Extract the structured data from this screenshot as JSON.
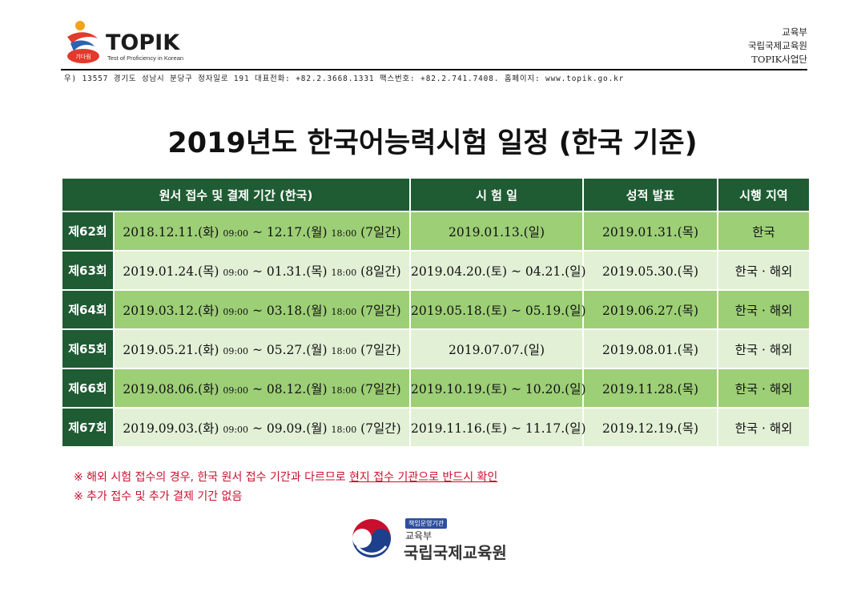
{
  "header": {
    "brand": "TOPIK",
    "tagline": "Test of Proficiency in Korean",
    "logo_badge": "기다림",
    "org_lines": [
      "교육부",
      "국립국제교육원",
      "TOPIK사업단"
    ],
    "address": "우) 13557 경기도 성남시 분당구 정자일로 191 대표전화: +82.2.3668.1331 팩스번호: +82.2.741.7408. 홈페이지: www.topik.go.kr"
  },
  "title": "2019년도 한국어능력시험 일정 (한국 기준)",
  "table": {
    "headers": [
      "원서 접수 및 결제 기간 (한국)",
      "시 험 일",
      "성적 발표",
      "시행 지역"
    ],
    "rows": [
      {
        "round": "제62회",
        "apply_start": "2018.12.11.(화)",
        "time_start": "09:00",
        "apply_end": "~ 12.17.(월)",
        "time_end": "18:00",
        "days": "(7일간)",
        "exam": "2019.01.13.(일)",
        "result": "2019.01.31.(목)",
        "region": "한국"
      },
      {
        "round": "제63회",
        "apply_start": "2019.01.24.(목)",
        "time_start": "09:00",
        "apply_end": "~ 01.31.(목)",
        "time_end": "18:00",
        "days": "(8일간)",
        "exam": "2019.04.20.(토) ~ 04.21.(일)",
        "result": "2019.05.30.(목)",
        "region": "한국 · 해외"
      },
      {
        "round": "제64회",
        "apply_start": "2019.03.12.(화)",
        "time_start": "09:00",
        "apply_end": "~ 03.18.(월)",
        "time_end": "18:00",
        "days": "(7일간)",
        "exam": "2019.05.18.(토) ~ 05.19.(일)",
        "result": "2019.06.27.(목)",
        "region": "한국 · 해외"
      },
      {
        "round": "제65회",
        "apply_start": "2019.05.21.(화)",
        "time_start": "09:00",
        "apply_end": "~ 05.27.(월)",
        "time_end": "18:00",
        "days": "(7일간)",
        "exam": "2019.07.07.(일)",
        "result": "2019.08.01.(목)",
        "region": "한국 · 해외"
      },
      {
        "round": "제66회",
        "apply_start": "2019.08.06.(화)",
        "time_start": "09:00",
        "apply_end": "~ 08.12.(월)",
        "time_end": "18:00",
        "days": "(7일간)",
        "exam": "2019.10.19.(토) ~ 10.20.(일)",
        "result": "2019.11.28.(목)",
        "region": "한국 · 해외"
      },
      {
        "round": "제67회",
        "apply_start": "2019.09.03.(화)",
        "time_start": "09:00",
        "apply_end": "~ 09.09.(월)",
        "time_end": "18:00",
        "days": "(7일간)",
        "exam": "2019.11.16.(토) ~ 11.17.(일)",
        "result": "2019.12.19.(목)",
        "region": "한국 · 해외"
      }
    ]
  },
  "notes": {
    "note1_prefix": "※ 해외 시험 접수의 경우, 한국 원서 접수 기간과 다르므로 ",
    "note1_emphasis": "현지 접수 기관으로 반드시 확인",
    "note2": "※ 추가 접수 및 추가 결제 기간 없음"
  },
  "footer_logo": {
    "badge": "책임운영기관",
    "ministry": "교육부",
    "institute": "국립국제교육원"
  },
  "colors": {
    "header_green": "#1f5b33",
    "row_dark": "#9dcf76",
    "row_light": "#e2f0d6",
    "note_red": "#c8102e"
  }
}
